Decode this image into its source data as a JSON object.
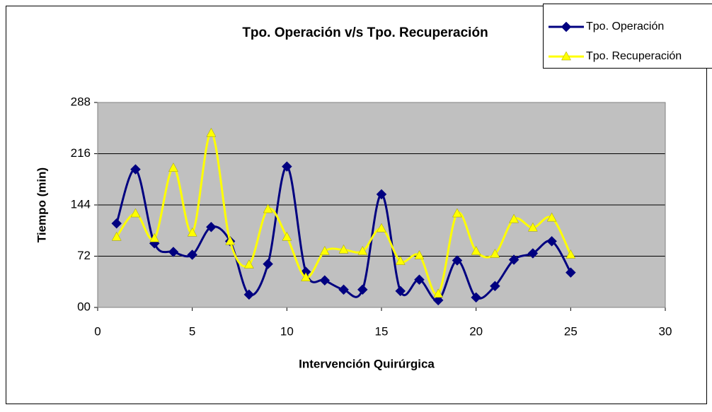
{
  "chart_data": {
    "type": "line",
    "title": "Tpo. Operación v/s Tpo. Recuperación",
    "x_label": "Intervención Quirúrgica",
    "y_label": "Tiempo (min)",
    "x": [
      1,
      2,
      3,
      4,
      5,
      6,
      7,
      8,
      9,
      10,
      11,
      12,
      13,
      14,
      15,
      16,
      17,
      18,
      19,
      20,
      21,
      22,
      23,
      24,
      25
    ],
    "series": [
      {
        "name": "Tpo. Operación",
        "color": "#000080",
        "marker": "diamond",
        "values": [
          118,
          194,
          90,
          78,
          74,
          113,
          93,
          18,
          61,
          198,
          50,
          38,
          25,
          25,
          159,
          23,
          39,
          10,
          66,
          14,
          30,
          67,
          76,
          93,
          49
        ]
      },
      {
        "name": "Tpo. Recuperación",
        "color": "#ffff00",
        "marker": "triangle",
        "values": [
          99,
          132,
          97,
          196,
          105,
          245,
          93,
          60,
          138,
          99,
          42,
          79,
          81,
          79,
          111,
          65,
          73,
          19,
          132,
          79,
          75,
          124,
          112,
          126,
          74
        ]
      }
    ],
    "xlim": [
      0,
      30
    ],
    "xticks": [
      0,
      5,
      10,
      15,
      20,
      25,
      30
    ],
    "ylim": [
      0,
      288
    ],
    "yticks": [
      {
        "value": 0,
        "label": "00"
      },
      72,
      144,
      216,
      288
    ],
    "grid": true,
    "smooth": true,
    "legend": "top-right",
    "plot_background": "#c0c0c0"
  }
}
